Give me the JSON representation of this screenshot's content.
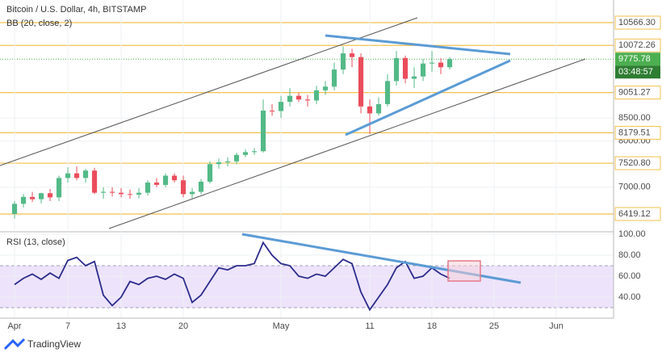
{
  "header": {
    "title": "Bitcoin / U.S. Dollar, 4h, BITSTAMP",
    "indicator": "BB (20, close, 2)"
  },
  "chart_data": [
    {
      "type": "candlestick",
      "x": [
        0,
        1,
        2,
        3,
        4,
        5,
        6,
        7,
        8,
        9,
        10,
        11,
        12,
        13,
        14,
        15,
        16,
        17,
        18,
        19,
        20,
        21,
        22,
        23,
        24,
        25,
        26,
        27,
        28,
        29,
        30,
        31,
        32,
        33,
        34,
        35,
        36,
        37,
        38,
        39,
        40,
        41,
        42,
        43,
        44,
        45,
        46,
        47,
        48,
        49
      ],
      "open": [
        6420,
        6640,
        6790,
        6740,
        6870,
        6780,
        7200,
        7300,
        7200,
        7360,
        6880,
        6900,
        6880,
        6850,
        6840,
        6880,
        7100,
        7050,
        7250,
        7150,
        6850,
        6900,
        7120,
        7500,
        7540,
        7560,
        7700,
        7760,
        7780,
        8660,
        8650,
        8850,
        8980,
        8900,
        8880,
        9100,
        9180,
        9550,
        9900,
        9820,
        8750,
        8600,
        8800,
        9300,
        9800,
        9350,
        9400,
        9680,
        9700,
        9600
      ],
      "high": [
        6700,
        6850,
        6900,
        6880,
        6960,
        7250,
        7430,
        7450,
        7400,
        7420,
        7000,
        7000,
        6980,
        6950,
        6980,
        7150,
        7200,
        7300,
        7300,
        7250,
        6980,
        7180,
        7560,
        7620,
        7650,
        7750,
        7820,
        7850,
        8900,
        8800,
        8980,
        9150,
        9050,
        9000,
        9200,
        9300,
        9700,
        10050,
        10000,
        9900,
        8900,
        8950,
        9450,
        9950,
        9850,
        9600,
        9780,
        9950,
        9800,
        9820
      ],
      "low": [
        6320,
        6560,
        6680,
        6650,
        6700,
        6700,
        7100,
        7150,
        7100,
        6850,
        6750,
        6800,
        6780,
        6750,
        6760,
        6820,
        7000,
        7000,
        7100,
        6780,
        6760,
        6850,
        7080,
        7400,
        7450,
        7500,
        7650,
        7700,
        7750,
        8550,
        8500,
        8750,
        8850,
        8750,
        8800,
        9000,
        9100,
        9450,
        9600,
        8600,
        8150,
        8550,
        8750,
        9200,
        9250,
        9150,
        9300,
        9500,
        9450,
        9550
      ],
      "close": [
        6640,
        6790,
        6740,
        6870,
        6780,
        7200,
        7300,
        7200,
        7360,
        6880,
        6900,
        6880,
        6850,
        6840,
        6880,
        7100,
        7050,
        7250,
        7150,
        6850,
        6900,
        7120,
        7500,
        7540,
        7560,
        7700,
        7760,
        7780,
        8660,
        8650,
        8850,
        8980,
        8900,
        8880,
        9100,
        9180,
        9550,
        9900,
        9820,
        8750,
        8600,
        8800,
        9300,
        9800,
        9350,
        9400,
        9680,
        9700,
        9600,
        9775.78
      ],
      "up_color": "#53b987",
      "down_color": "#eb4d5c",
      "xlim": [
        -1.64,
        67.45
      ],
      "ylim": [
        6069,
        11057
      ],
      "yticks": [
        {
          "value": 7000,
          "label": "7000.00"
        },
        {
          "value": 8000,
          "label": "8000.00"
        },
        {
          "value": 8500,
          "label": "8500.00"
        }
      ],
      "levels": [
        {
          "value": 6419.12,
          "label": "6419.12"
        },
        {
          "value": 7520.8,
          "label": "7520.80"
        },
        8179.51,
        9051.27,
        10072.26,
        {
          "value": 10566.3,
          "label": "10566.30"
        }
      ],
      "level_color": "#f2c14e",
      "countdown": "03:48:57",
      "grid": true
    },
    {
      "type": "line",
      "title": "RSI (13, close)",
      "x": [
        0,
        1,
        2,
        3,
        4,
        5,
        6,
        7,
        8,
        9,
        10,
        11,
        12,
        13,
        14,
        15,
        16,
        17,
        18,
        19,
        20,
        21,
        22,
        23,
        24,
        25,
        26,
        27,
        28,
        29,
        30,
        31,
        32,
        33,
        34,
        35,
        36,
        37,
        38,
        39,
        40,
        41,
        42,
        43,
        44,
        45,
        46,
        47,
        48,
        49
      ],
      "values": [
        52,
        58,
        62,
        57,
        63,
        58,
        75,
        78,
        70,
        74,
        42,
        32,
        40,
        55,
        52,
        58,
        60,
        57,
        62,
        58,
        35,
        42,
        55,
        68,
        66,
        70,
        70,
        72,
        92,
        80,
        72,
        70,
        60,
        58,
        62,
        60,
        68,
        76,
        72,
        45,
        28,
        40,
        52,
        68,
        74,
        58,
        60,
        68,
        62,
        58
      ],
      "color": "#2b2b8c",
      "band": [
        30,
        70
      ],
      "band_color": "#e6d7fa",
      "xlim": [
        -1.64,
        67.45
      ],
      "ylim": [
        20,
        100
      ],
      "yticks": [
        {
          "value": 40,
          "label": "40.00"
        },
        {
          "value": 60,
          "label": "60.00"
        },
        {
          "value": 80,
          "label": "80.00"
        },
        {
          "value": 100,
          "label": "100.00"
        }
      ],
      "xticks": [
        {
          "value": 0,
          "label": "Apr"
        },
        {
          "value": 6,
          "label": "7"
        },
        {
          "value": 12,
          "label": "13"
        },
        {
          "value": 19,
          "label": "20"
        },
        {
          "value": 30,
          "label": "May"
        },
        {
          "value": 40,
          "label": "11"
        },
        {
          "value": 47,
          "label": "18"
        },
        {
          "value": 54,
          "label": "25"
        },
        {
          "value": 61,
          "label": "Jun"
        }
      ],
      "grid": true
    }
  ],
  "footer": {
    "brand": "TradingView"
  }
}
